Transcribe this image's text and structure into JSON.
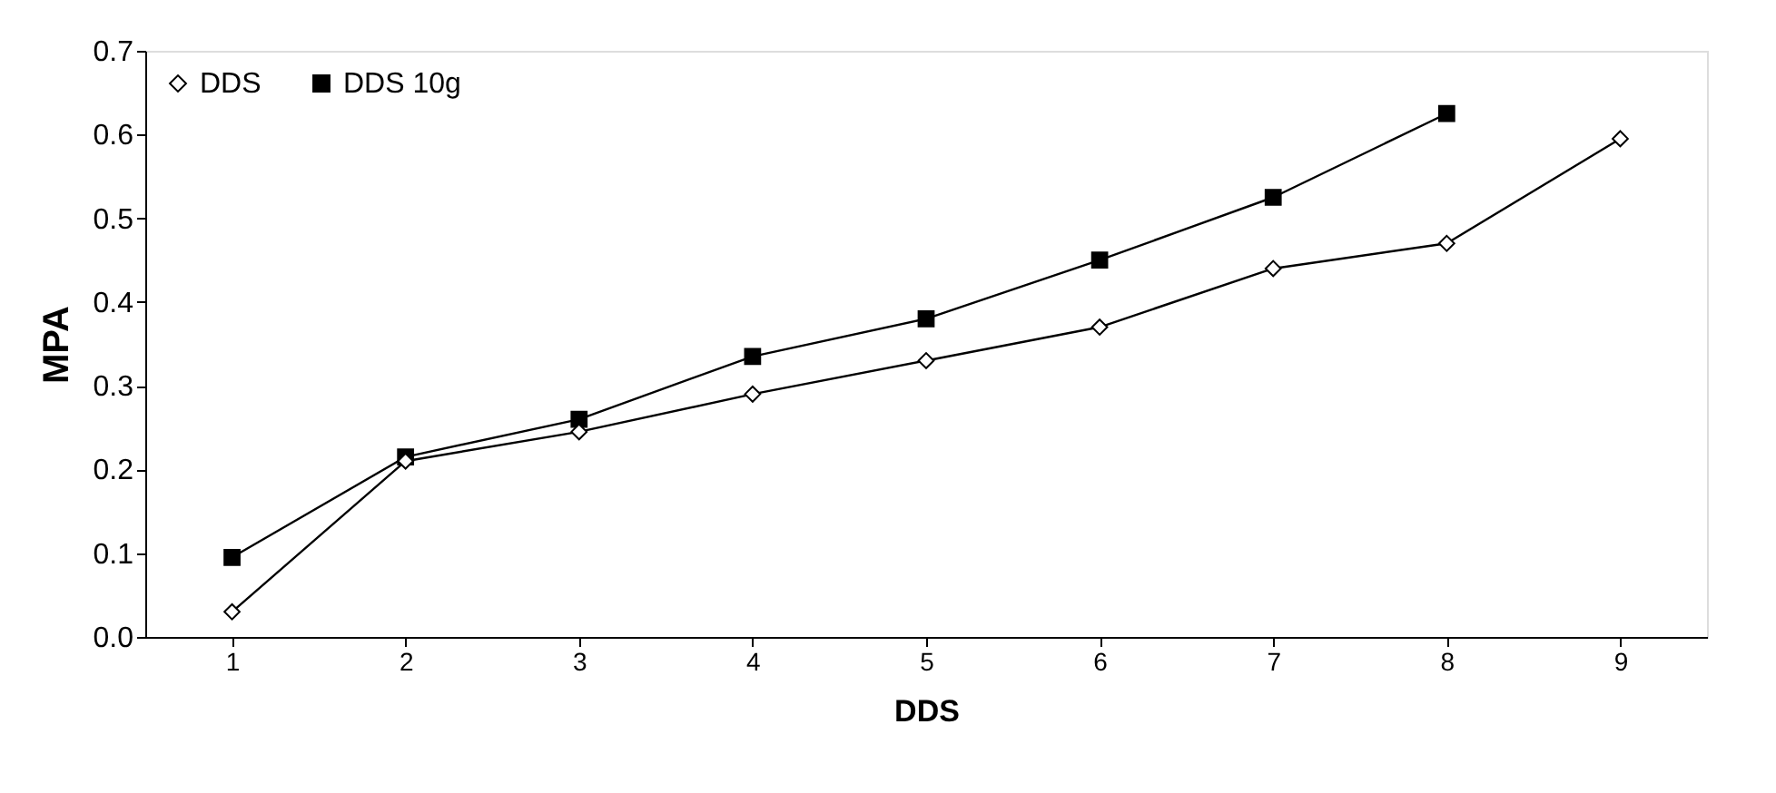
{
  "chart_data": {
    "type": "line",
    "xlabel": "DDS",
    "ylabel": "MPA",
    "categories": [
      "1",
      "2",
      "3",
      "4",
      "5",
      "6",
      "7",
      "8",
      "9"
    ],
    "series": [
      {
        "name": "DDS",
        "color": "#000000",
        "marker": "diamond",
        "values": [
          0.03,
          0.21,
          0.245,
          0.29,
          0.33,
          0.37,
          0.44,
          0.47,
          0.595
        ]
      },
      {
        "name": "DDS 10g",
        "color": "#000000",
        "marker": "square",
        "values": [
          0.095,
          0.215,
          0.26,
          0.335,
          0.38,
          0.45,
          0.525,
          0.625,
          null
        ]
      }
    ],
    "ylim": [
      0,
      0.7
    ],
    "yticks": [
      {
        "value": 0,
        "label": "0.0"
      },
      0.1,
      0.2,
      0.3,
      0.4,
      0.5,
      0.6,
      0.7
    ],
    "grid": false,
    "legend": "top left",
    "line_style": "solid"
  }
}
